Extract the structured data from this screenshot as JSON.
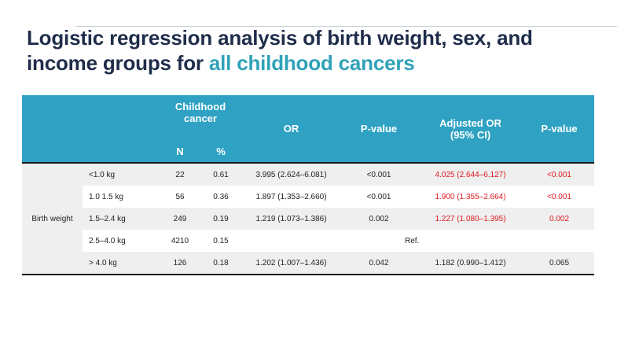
{
  "title": {
    "main": "Logistic regression analysis of birth weight, sex, and income groups for ",
    "highlight": "all childhood cancers"
  },
  "table": {
    "header": {
      "childhood_cancer": "Childhood cancer",
      "or": "OR",
      "p_value": "P-value",
      "adjusted_or": "Adjusted OR (95% CI)",
      "p_value_adj": "P-value",
      "n": "N",
      "pct": "%"
    },
    "group_label": "Birth weight",
    "rows": [
      {
        "category": "<1.0 kg",
        "n": "22",
        "pct": "0.61",
        "or": "3.995 (2.624–6.081)",
        "p": "<0.001",
        "adj_or": "4.025 (2.644–6.127)",
        "adj_p": "<0.001"
      },
      {
        "category": "1.0 1.5 kg",
        "n": "56",
        "pct": "0.36",
        "or": "1.897 (1.353–2.660)",
        "p": "<0.001",
        "adj_or": "1.900 (1.355–2.664)",
        "adj_p": "<0.001"
      },
      {
        "category": "1.5–2.4 kg",
        "n": "249",
        "pct": "0.19",
        "or": "1.219 (1.073–1.386)",
        "p": "0.002",
        "adj_or": "1.227 (1.080–1.395)",
        "adj_p": "0.002"
      },
      {
        "category": "2.5–4.0 kg",
        "n": "4210",
        "pct": "0.15",
        "ref": "Ref."
      },
      {
        "category": "> 4.0 kg",
        "n": "126",
        "pct": "0.18",
        "or": "1.202 (1.007–1.436)",
        "p": "0.042",
        "adj_or": "1.182 (0.990–1.412)",
        "adj_p": "0.065"
      }
    ]
  },
  "colors": {
    "title": "#1f2d4a",
    "highlight": "#2fa2b8",
    "header_bg": "#2fa2c3",
    "significant": "#e0191e",
    "row_shade": "#efefef"
  }
}
